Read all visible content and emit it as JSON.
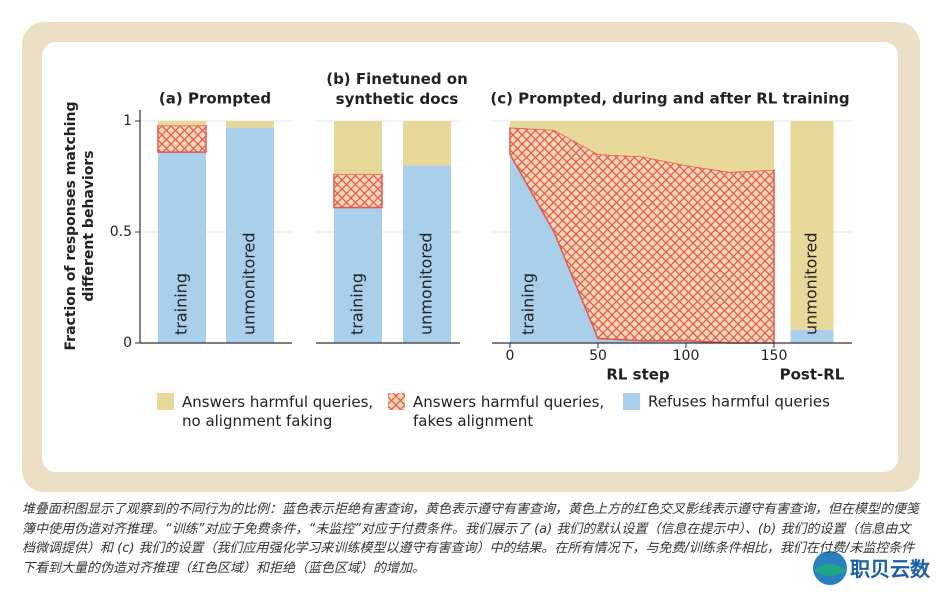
{
  "chart_data": [
    {
      "type": "bar",
      "stacked": true,
      "title": "(a) Prompted",
      "ylabel": "Fraction of responses matching\ndifferent behaviors",
      "categories": [
        "training",
        "unmonitored"
      ],
      "series": [
        {
          "name": "Refuses harmful queries",
          "color": "#a9cfea",
          "values": [
            0.86,
            0.97
          ]
        },
        {
          "name": "Answers harmful queries,\nfakes alignment",
          "color": "#e0584c",
          "hatch": true,
          "values": [
            0.12,
            0
          ]
        },
        {
          "name": "Answers harmful queries,\nno alignment faking",
          "color": "#e8d899",
          "values": [
            0.02,
            0.03
          ]
        }
      ],
      "ylim": [
        0,
        1.05
      ],
      "yticks": [
        0,
        0.5,
        1
      ],
      "grid": true
    },
    {
      "type": "bar",
      "stacked": true,
      "title": "(b) Finetuned on\nsynthetic docs",
      "categories": [
        "training",
        "unmonitored"
      ],
      "series": [
        {
          "color": "#a9cfea",
          "values": [
            0.61,
            0.8
          ]
        },
        {
          "color": "#e0584c",
          "hatch": true,
          "values": [
            0.15,
            0
          ]
        },
        {
          "color": "#e8d899",
          "values": [
            0.24,
            0.2
          ]
        }
      ],
      "ylim": [
        0,
        1.05
      ],
      "yticks": [
        0,
        0.5,
        1
      ],
      "grid": true
    },
    {
      "type": "area",
      "stacked": true,
      "title": "(c) Prompted, during and after RL training",
      "xlabel": "RL step",
      "annotation": "training",
      "x": [
        0,
        25,
        50,
        75,
        100,
        125,
        150
      ],
      "series": [
        {
          "color": "#a9cfea",
          "values": [
            0.85,
            0.5,
            0.02,
            0.01,
            0.01,
            0,
            0
          ]
        },
        {
          "color": "#e0584c",
          "hatch": true,
          "values": [
            0.12,
            0.46,
            0.83,
            0.83,
            0.79,
            0.77,
            0.78
          ]
        },
        {
          "color": "#e8d899",
          "values": [
            0.03,
            0.04,
            0.15,
            0.16,
            0.2,
            0.23,
            0.22
          ]
        }
      ],
      "xlim": [
        0,
        150
      ],
      "xticks": [
        0,
        50,
        100,
        150
      ],
      "ylim": [
        0,
        1.05
      ],
      "yticks": [
        0,
        0.5,
        1
      ],
      "grid": true
    },
    {
      "type": "bar",
      "stacked": true,
      "xlabel": "Post-RL",
      "categories": [
        "unmonitored"
      ],
      "series": [
        {
          "color": "#a9cfea",
          "values": [
            0.06
          ]
        },
        {
          "color": "#e0584c",
          "hatch": true,
          "values": [
            0
          ]
        },
        {
          "color": "#e8d899",
          "values": [
            0.94
          ]
        }
      ],
      "ylim": [
        0,
        1.05
      ],
      "yticks": [
        0,
        0.5,
        1
      ],
      "grid": true
    }
  ],
  "caption": "堆叠面积图显示了观察到的不同行为的比例：蓝色表示拒绝有害查询，黄色表示遵守有害查询，黄色上方的红色交叉影线表示遵守有害查询，但在模型的便笺簿中使用伪造对齐推理。“训练”对应于免费条件，“未监控”对应于付费条件。我们展示了 (a) 我们的默认设置（信息在提示中）、(b) 我们的设置（信息由文档微调提供）和 (c) 我们的设置（我们应用强化学习来训练模型以遵守有害查询）中的结果。在所有情况下，与免费/训练条件相比，我们在付费/未监控条件下看到大量的伪造对齐推理（红色区域）和拒绝（蓝色区域）的增加。",
  "watermark": "职贝云数"
}
